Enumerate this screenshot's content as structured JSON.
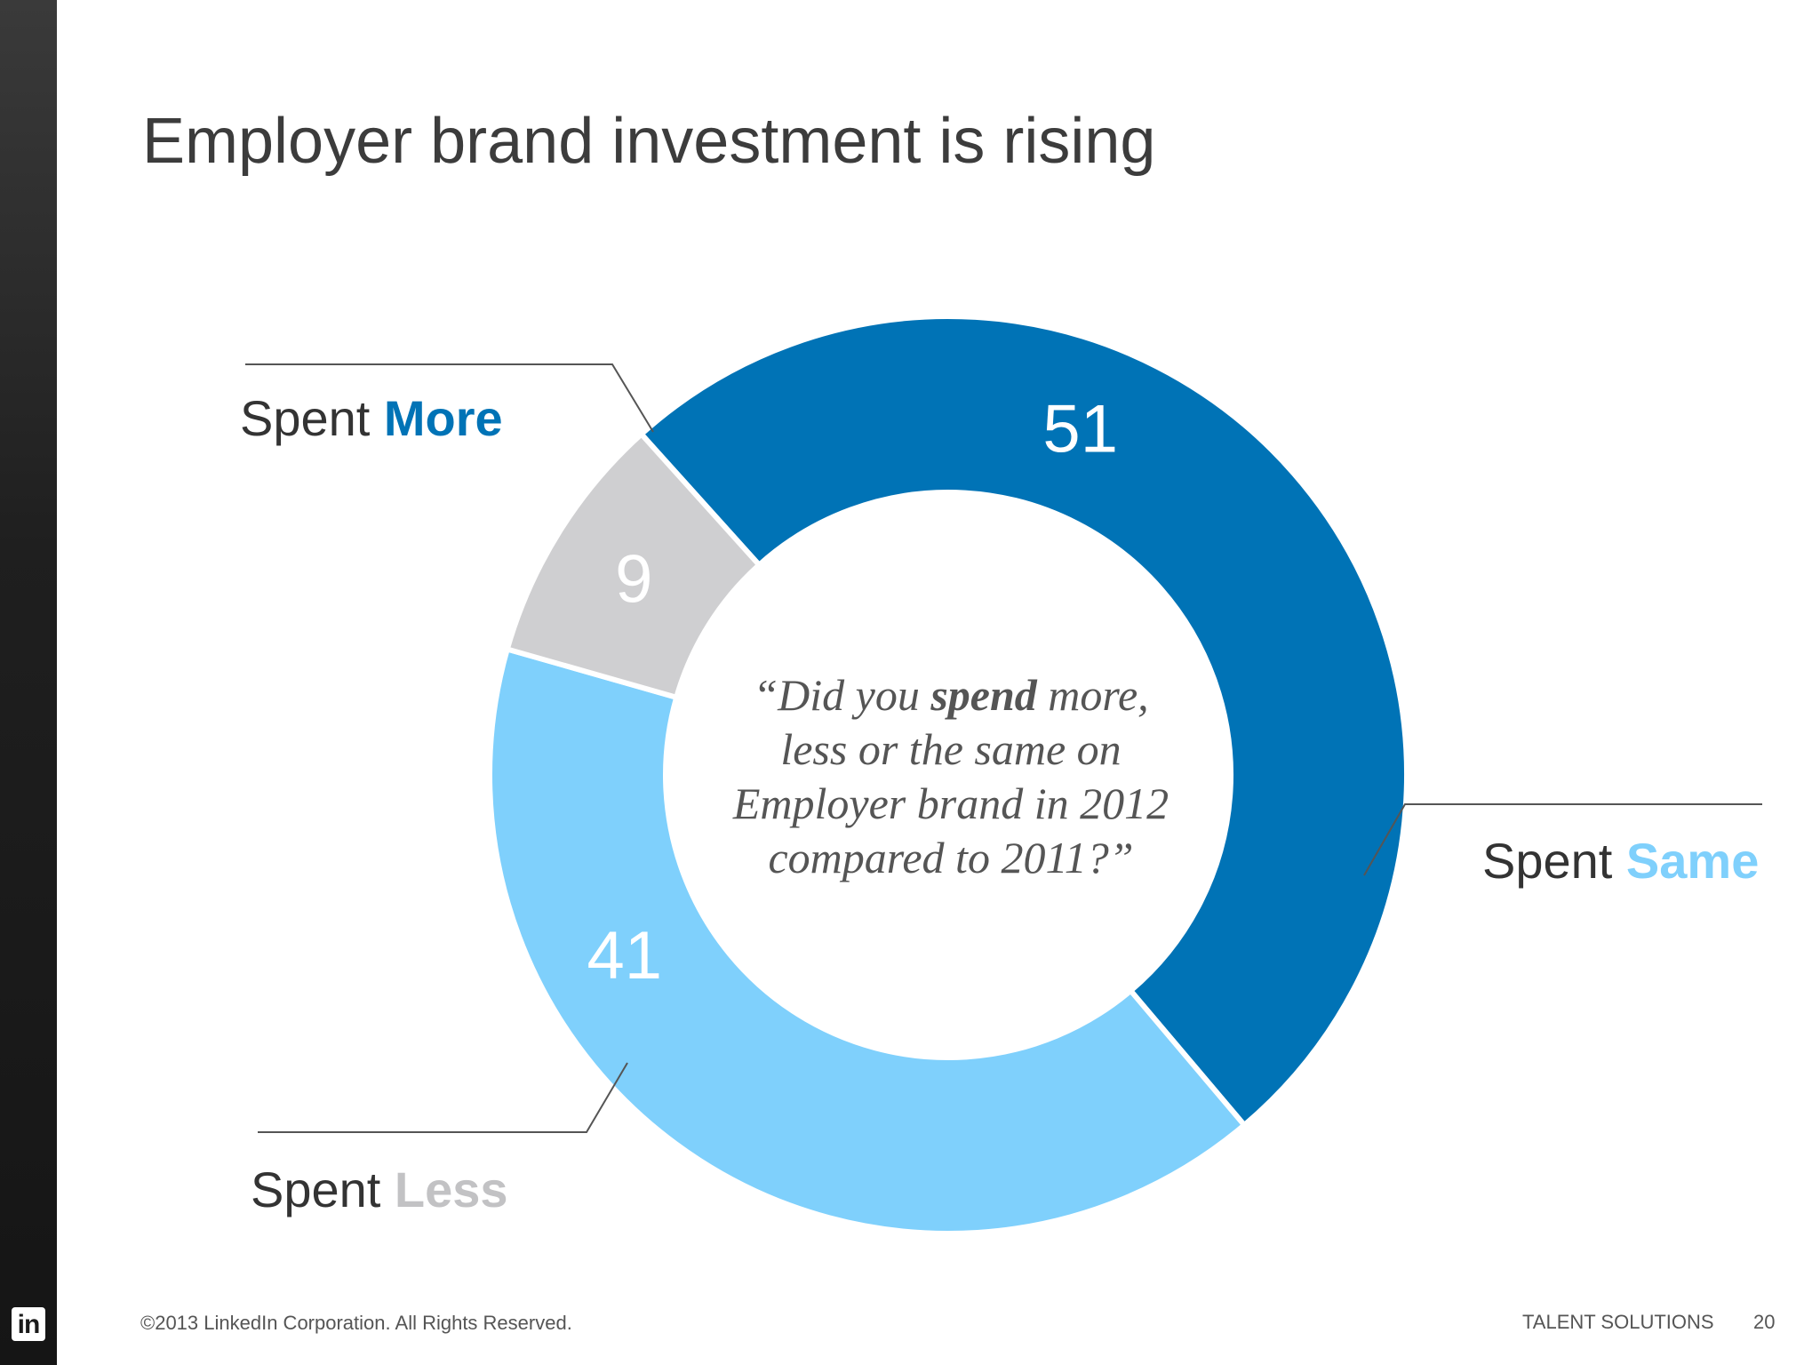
{
  "slide": {
    "title": "Employer brand investment is rising",
    "logo_text": "in",
    "footer": {
      "copyright": "©2013 LinkedIn Corporation. All Rights Reserved.",
      "brand": "TALENT SOLUTIONS",
      "page_number": "20"
    }
  },
  "chart_data": {
    "type": "pie",
    "style": "donut",
    "title": "",
    "categories": [
      "Spent More",
      "Spent Same",
      "Spent Less"
    ],
    "values": [
      51,
      41,
      9
    ],
    "data_labels": [
      "51",
      "41",
      "9"
    ],
    "colors": [
      "#0073b6",
      "#7fd0fc",
      "#cfcfd1"
    ],
    "legend_labels": [
      {
        "prefix": "Spent ",
        "accent": "More",
        "color": "#0073b6"
      },
      {
        "prefix": "Spent ",
        "accent": "Same",
        "color": "#7fd0fc"
      },
      {
        "prefix": "Spent ",
        "accent": "Less",
        "color": "#c2c2c4"
      }
    ],
    "center_text": {
      "line1_pre": "“Did you ",
      "line1_bold": "spend",
      "line1_post": " more,",
      "line2": "less or the same on",
      "line3": "Employer brand in 2012",
      "line4": "compared to 2011?”"
    }
  }
}
